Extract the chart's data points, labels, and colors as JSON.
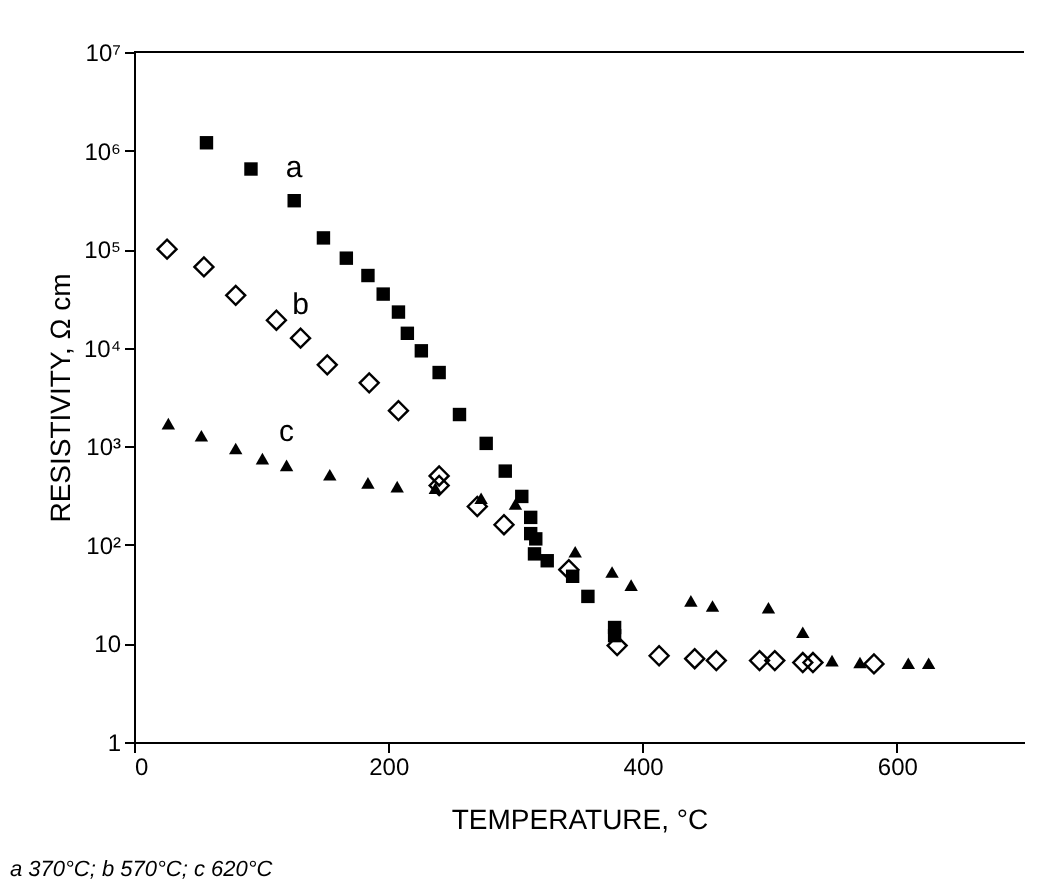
{
  "chart_data": {
    "type": "scatter",
    "xlabel": "TEMPERATURE, °C",
    "ylabel": "RESISTIVITY, Ω cm",
    "log": "y",
    "grid": false,
    "legend": false,
    "xlim": [
      0,
      700
    ],
    "xticks": [
      0,
      200,
      400,
      600
    ],
    "ylim": [
      1,
      10000000
    ],
    "yticks": [
      {
        "value": 1,
        "label": "1"
      },
      {
        "value": 10,
        "label": "10"
      },
      {
        "value": 100,
        "label": "10²"
      },
      {
        "value": 1000,
        "label": "10³"
      },
      {
        "value": 10000,
        "label": "10⁴"
      },
      {
        "value": 100000,
        "label": "10⁵"
      },
      {
        "value": 1000000,
        "label": "10⁶"
      },
      {
        "value": 10000000,
        "label": "10⁷"
      }
    ],
    "series": [
      {
        "name": "a",
        "color": "#000000",
        "marker": "square",
        "x": [
          57,
          92,
          126,
          149,
          167,
          184,
          196,
          208,
          215,
          226,
          240,
          256,
          277,
          292,
          305,
          312,
          312,
          316,
          315,
          325,
          345,
          357,
          378,
          378
        ],
        "values": [
          1200000,
          650000,
          310000,
          130000,
          81000,
          54000,
          35000,
          23000,
          14000,
          9300,
          5600,
          2100,
          1070,
          560,
          310,
          190,
          130,
          115,
          81,
          69,
          48,
          30,
          14.5,
          12
        ]
      },
      {
        "name": "b",
        "color": "#000000",
        "marker": "diamond",
        "x": [
          26,
          55,
          80,
          112,
          131,
          152,
          185,
          208,
          240,
          240,
          270,
          291,
          342,
          380,
          413,
          441,
          458,
          492,
          504,
          526,
          534,
          582
        ],
        "values": [
          100000,
          66000,
          34000,
          19000,
          12500,
          6700,
          4400,
          2300,
          500,
          400,
          245,
          160,
          56,
          9.5,
          7.5,
          7,
          6.7,
          6.7,
          6.7,
          6.4,
          6.4,
          6.2
        ]
      },
      {
        "name": "c",
        "color": "#000000",
        "marker": "triangle",
        "x": [
          27,
          53,
          80,
          101,
          120,
          154,
          184,
          207,
          237,
          273,
          300,
          347,
          376,
          391,
          438,
          455,
          499,
          526,
          549,
          571,
          609,
          625
        ],
        "values": [
          1700,
          1280,
          950,
          750,
          640,
          515,
          425,
          390,
          375,
          297,
          260,
          85,
          53,
          39,
          27,
          24,
          23,
          13,
          6.7,
          6.4,
          6.3,
          6.3
        ]
      }
    ],
    "annotations": [
      "a 370°C; b 570°C; c 620°C"
    ]
  }
}
